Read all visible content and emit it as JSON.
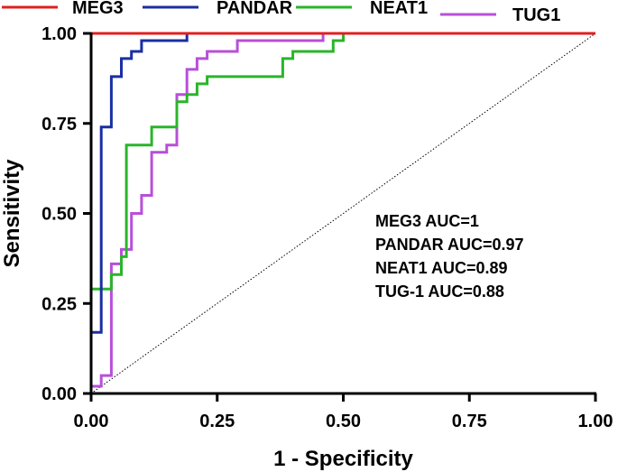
{
  "chart_data": {
    "type": "line",
    "title": "",
    "xlabel": "1 - Specificity",
    "ylabel": "Sensitivity",
    "xlim": [
      0,
      1
    ],
    "ylim": [
      0,
      1
    ],
    "xticks": [
      0,
      0.25,
      0.5,
      0.75,
      1
    ],
    "yticks": [
      0,
      0.25,
      0.5,
      0.75,
      1
    ],
    "xtick_labels": [
      "0.00",
      "0.25",
      "0.50",
      "0.75",
      "1.00"
    ],
    "ytick_labels": [
      "0.00",
      "0.25",
      "0.50",
      "0.75",
      "1.00"
    ],
    "grid": false,
    "legend_position": "top",
    "reference_line": {
      "name": "chance diagonal",
      "x": [
        0,
        1
      ],
      "y": [
        0,
        1
      ],
      "style": "dotted"
    },
    "series": [
      {
        "name": "MEG3",
        "color": "#e02020",
        "x": [
          0,
          0,
          1
        ],
        "y": [
          0,
          1,
          1
        ]
      },
      {
        "name": "PANDAR",
        "color": "#1a2fa3",
        "x": [
          0,
          0,
          0.02,
          0.02,
          0.04,
          0.04,
          0.06,
          0.06,
          0.08,
          0.08,
          0.1,
          0.1,
          0.19,
          0.19,
          1
        ],
        "y": [
          0,
          0.17,
          0.17,
          0.74,
          0.74,
          0.88,
          0.88,
          0.93,
          0.93,
          0.95,
          0.95,
          0.98,
          0.98,
          1,
          1
        ]
      },
      {
        "name": "NEAT1",
        "color": "#2ab52a",
        "x": [
          0,
          0,
          0.04,
          0.04,
          0.06,
          0.06,
          0.07,
          0.07,
          0.12,
          0.12,
          0.17,
          0.17,
          0.19,
          0.19,
          0.21,
          0.21,
          0.23,
          0.23,
          0.38,
          0.38,
          0.4,
          0.4,
          0.48,
          0.48,
          0.5,
          0.5,
          1
        ],
        "y": [
          0,
          0.29,
          0.29,
          0.33,
          0.33,
          0.38,
          0.38,
          0.69,
          0.69,
          0.74,
          0.74,
          0.81,
          0.81,
          0.83,
          0.83,
          0.86,
          0.86,
          0.88,
          0.88,
          0.93,
          0.93,
          0.95,
          0.95,
          0.98,
          0.98,
          1,
          1
        ]
      },
      {
        "name": "TUG1",
        "color": "#b84fd9",
        "x": [
          0,
          0,
          0.02,
          0.02,
          0.04,
          0.04,
          0.06,
          0.06,
          0.08,
          0.08,
          0.1,
          0.1,
          0.12,
          0.12,
          0.15,
          0.15,
          0.17,
          0.17,
          0.19,
          0.19,
          0.21,
          0.21,
          0.23,
          0.23,
          0.29,
          0.29,
          0.46,
          0.46,
          0.52,
          0.52,
          1
        ],
        "y": [
          0,
          0.02,
          0.02,
          0.05,
          0.05,
          0.36,
          0.36,
          0.4,
          0.4,
          0.5,
          0.5,
          0.55,
          0.55,
          0.67,
          0.67,
          0.69,
          0.69,
          0.83,
          0.83,
          0.9,
          0.9,
          0.93,
          0.93,
          0.95,
          0.95,
          0.98,
          0.98,
          1,
          1,
          1,
          1
        ]
      }
    ],
    "annotations": [
      "MEG3 AUC=1",
      "PANDAR AUC=0.97",
      "NEAT1 AUC=0.89",
      "TUG-1 AUC=0.88"
    ]
  }
}
